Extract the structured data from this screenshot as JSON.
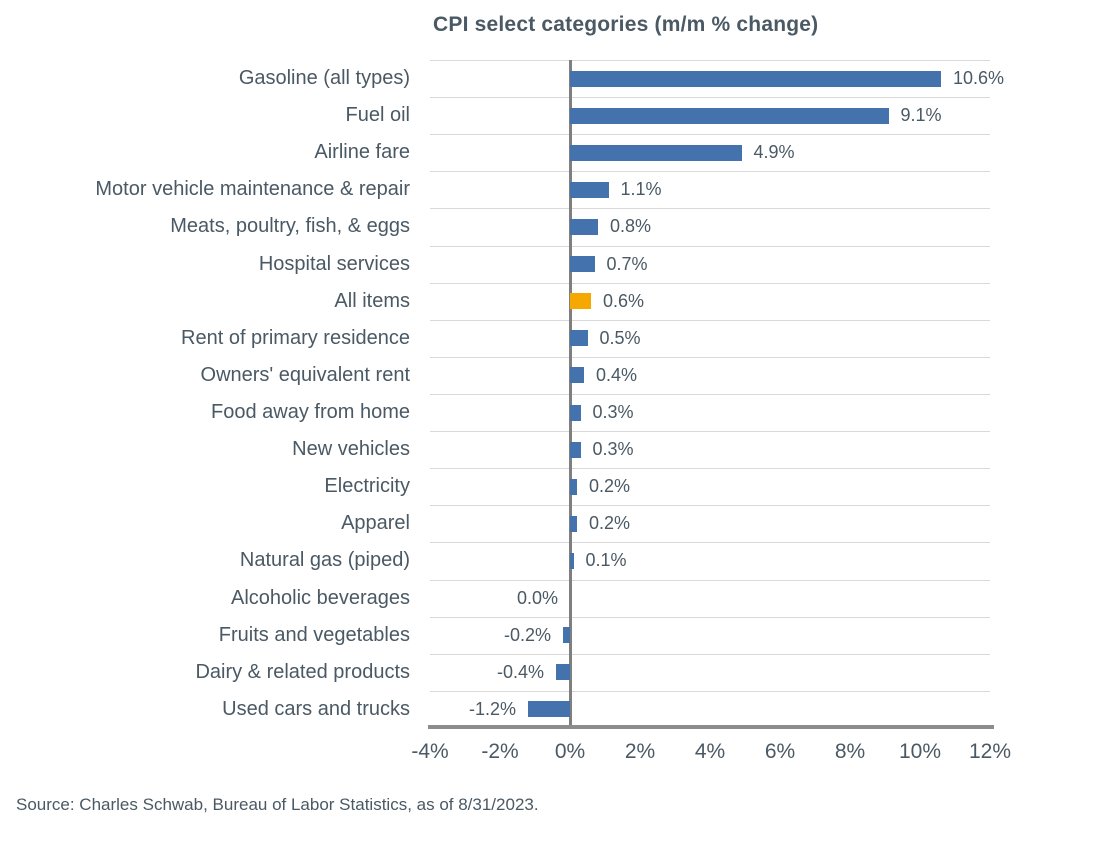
{
  "title": "CPI select categories (m/m % change)",
  "source_note": "Source: Charles Schwab, Bureau of Labor Statistics, as of 8/31/2023.",
  "colors": {
    "bar_blue": "#4472ac",
    "bar_highlight_orange": "#f5a800",
    "text": "#4a5964",
    "gridline": "#d9d9d9",
    "zero_line": "#7f7f7f",
    "axis_line": "#8c8c8c",
    "background": "#ffffff"
  },
  "chart_data": {
    "type": "bar",
    "orientation": "horizontal",
    "title": "CPI select categories (m/m % change)",
    "xlabel": "",
    "ylabel": "",
    "xlim": [
      -4,
      12
    ],
    "x_ticks": [
      -4,
      -2,
      0,
      2,
      4,
      6,
      8,
      10,
      12
    ],
    "x_tick_labels": [
      "-4%",
      "-2%",
      "0%",
      "2%",
      "4%",
      "6%",
      "8%",
      "10%",
      "12%"
    ],
    "grid": "horizontal row separators only",
    "legend": "none",
    "categories": [
      "Gasoline (all types)",
      "Fuel oil",
      "Airline fare",
      "Motor vehicle maintenance & repair",
      "Meats, poultry, fish, & eggs",
      "Hospital services",
      "All items",
      "Rent of primary residence",
      "Owners' equivalent rent",
      "Food away from home",
      "New vehicles",
      "Electricity",
      "Apparel",
      "Natural gas (piped)",
      "Alcoholic beverages",
      "Fruits and vegetables",
      "Dairy & related products",
      "Used cars and trucks"
    ],
    "values": [
      10.6,
      9.1,
      4.9,
      1.1,
      0.8,
      0.7,
      0.6,
      0.5,
      0.4,
      0.3,
      0.3,
      0.2,
      0.2,
      0.1,
      0.0,
      -0.2,
      -0.4,
      -1.2
    ],
    "value_labels": [
      "10.6%",
      "9.1%",
      "4.9%",
      "1.1%",
      "0.8%",
      "0.7%",
      "0.6%",
      "0.5%",
      "0.4%",
      "0.3%",
      "0.3%",
      "0.2%",
      "0.2%",
      "0.1%",
      "0.0%",
      "-0.2%",
      "-0.4%",
      "-1.2%"
    ],
    "highlight_index": 6,
    "highlight_category": "All items"
  }
}
